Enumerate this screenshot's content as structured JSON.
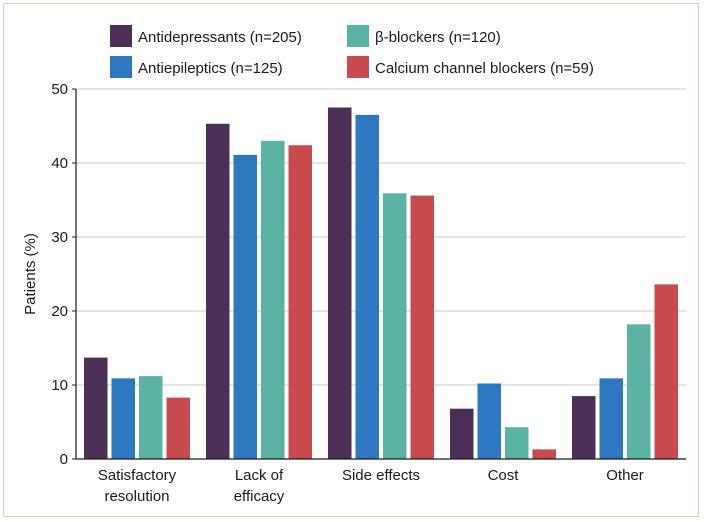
{
  "chart_data": {
    "type": "bar",
    "title": "",
    "xlabel": "",
    "ylabel": "Patients (%)",
    "ylim": [
      0,
      50
    ],
    "yticks": [
      "0",
      "10",
      "20",
      "30",
      "40",
      "50"
    ],
    "grid": true,
    "legend_position": "top",
    "categories": [
      [
        "Satisfactory",
        "resolution"
      ],
      [
        "Lack of",
        "efficacy"
      ],
      [
        "Side effects"
      ],
      [
        "Cost"
      ],
      [
        "Other"
      ]
    ],
    "series": [
      {
        "name": "Antidepressants (n=205)",
        "color": "#4b2f57",
        "values": [
          13.7,
          45.3,
          47.5,
          6.8,
          8.5
        ]
      },
      {
        "name": "Antiepileptics (n=125)",
        "color": "#2e78c2",
        "values": [
          10.9,
          41.1,
          46.5,
          10.2,
          10.9
        ]
      },
      {
        "name": "β-blockers (n=120)",
        "color": "#5bb3a4",
        "values": [
          11.2,
          43.0,
          35.9,
          4.3,
          18.2
        ]
      },
      {
        "name": "Calcium channel blockers (n=59)",
        "color": "#c94a4d",
        "values": [
          8.3,
          42.4,
          35.6,
          1.3,
          23.6
        ]
      }
    ]
  }
}
